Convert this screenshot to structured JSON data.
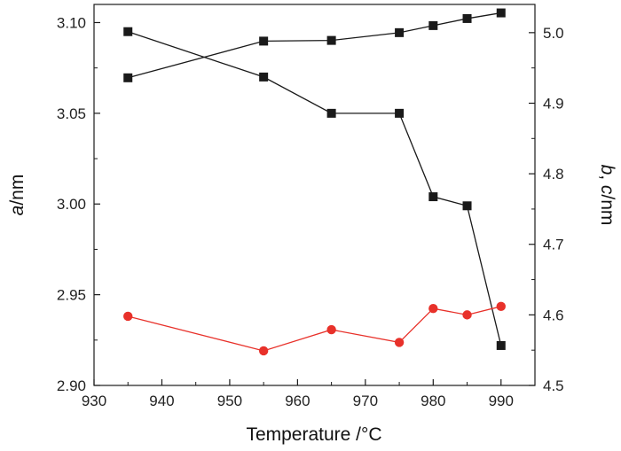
{
  "chart_data": {
    "type": "line",
    "xlabel": "Temperature /°C",
    "ylabel_left": {
      "italic": "a",
      "rest": "/nm"
    },
    "ylabel_right": {
      "italic1": "b",
      "sep": ", ",
      "italic2": "c",
      "rest": "/nm"
    },
    "xlim": [
      930,
      995
    ],
    "ylim_left": [
      2.9,
      3.11
    ],
    "ylim_right": [
      4.5,
      5.04
    ],
    "xticks": [
      930,
      940,
      950,
      960,
      970,
      980,
      990
    ],
    "yticks_left": [
      "2.90",
      "2.95",
      "3.00",
      "3.05",
      "3.10"
    ],
    "yticks_right": [
      "4.5",
      "4.6",
      "4.7",
      "4.8",
      "4.9",
      "5.0"
    ],
    "grid": false,
    "series": [
      {
        "axis": "left",
        "color": "#1a1a1a",
        "marker": "square",
        "x": [
          935,
          955,
          965,
          975,
          980,
          985,
          990
        ],
        "y": [
          3.095,
          3.07,
          3.05,
          3.05,
          3.004,
          2.999,
          2.922
        ]
      },
      {
        "axis": "right",
        "color": "#1a1a1a",
        "marker": "square",
        "x": [
          935,
          955,
          965,
          975,
          980,
          985,
          990
        ],
        "y": [
          4.936,
          4.988,
          4.989,
          5.0,
          5.01,
          5.02,
          5.028
        ]
      },
      {
        "axis": "right",
        "color": "#e8312a",
        "marker": "circle",
        "x": [
          935,
          955,
          965,
          975,
          980,
          985,
          990
        ],
        "y": [
          4.598,
          4.549,
          4.579,
          4.561,
          4.609,
          4.6,
          4.612
        ]
      }
    ]
  }
}
